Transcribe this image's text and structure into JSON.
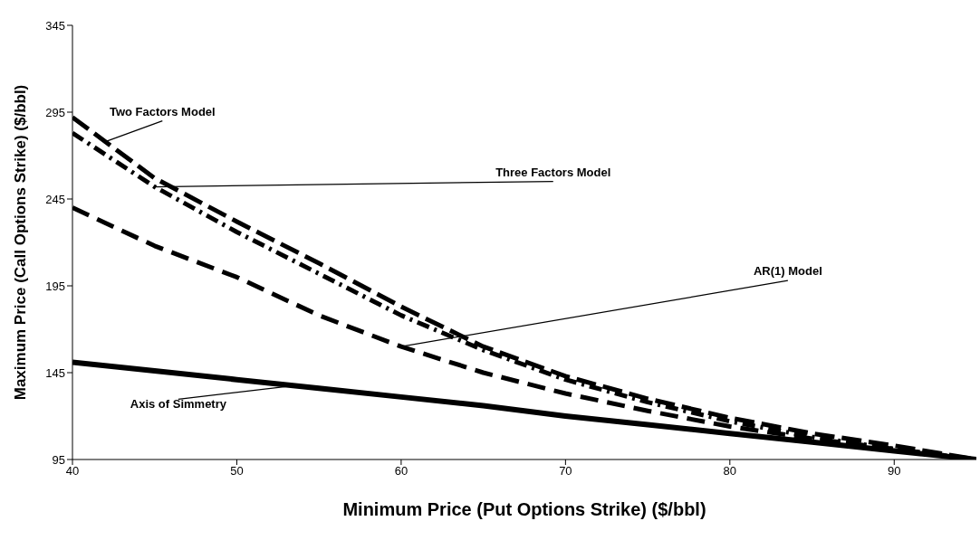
{
  "chart_data": {
    "type": "line",
    "xlabel": "Minimum Price (Put Options Strike) ($/bbl)",
    "ylabel": "Maximum Price (Call Options Strike) ($/bbl)",
    "x": [
      40,
      45,
      50,
      55,
      60,
      65,
      70,
      75,
      80,
      85,
      90,
      95
    ],
    "series": [
      {
        "color": "#000000",
        "line_style": "dashed",
        "values": [
          292,
          257,
          232,
          208,
          183,
          160,
          143,
          130,
          119,
          110,
          103,
          95
        ]
      },
      {
        "color": "#000000",
        "line_style": "dashed",
        "values": [
          283,
          252,
          226,
          202,
          178,
          158,
          141,
          128,
          117,
          108,
          101,
          95
        ]
      },
      {
        "color": "#000000",
        "line_style": "dashed",
        "values": [
          240,
          218,
          200,
          178,
          160,
          145,
          133,
          123,
          114,
          107,
          101,
          95
        ]
      },
      {
        "color": "#000000",
        "line_style": "solid",
        "values": [
          151,
          146,
          141,
          136,
          131,
          126,
          120,
          115,
          110,
          105,
          100,
          95
        ]
      }
    ],
    "annotations": [
      {
        "text": "Two Factors Model",
        "x": 42,
        "y": 278
      },
      {
        "text": "Three Factors Model",
        "x": 45,
        "y": 252
      },
      {
        "text": "AR(1) Model",
        "x": 60,
        "y": 160
      },
      {
        "text": "Axis of Simmetry",
        "x": 53,
        "y": 137
      }
    ],
    "xlim": [
      40,
      95
    ],
    "xticks": [
      40,
      50,
      60,
      70,
      80,
      90
    ],
    "ylim": [
      95,
      345
    ],
    "yticks": [
      95,
      145,
      195,
      245,
      295,
      345
    ],
    "grid": false,
    "marker": "none"
  }
}
